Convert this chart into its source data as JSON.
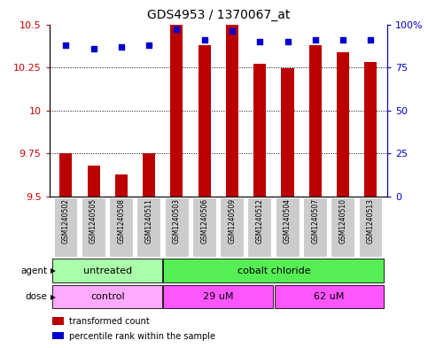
{
  "title": "GDS4953 / 1370067_at",
  "samples": [
    "GSM1240502",
    "GSM1240505",
    "GSM1240508",
    "GSM1240511",
    "GSM1240503",
    "GSM1240506",
    "GSM1240509",
    "GSM1240512",
    "GSM1240504",
    "GSM1240507",
    "GSM1240510",
    "GSM1240513"
  ],
  "transformed_count": [
    9.75,
    9.68,
    9.63,
    9.75,
    10.5,
    10.38,
    10.5,
    10.27,
    10.245,
    10.38,
    10.34,
    10.28
  ],
  "percentile_rank": [
    88,
    86,
    87,
    88,
    97,
    91,
    96,
    90,
    90,
    91,
    91,
    91
  ],
  "ymin": 9.5,
  "ymax": 10.5,
  "yticks_left": [
    9.5,
    9.75,
    10.0,
    10.25,
    10.5
  ],
  "ytick_labels_left": [
    "9.5",
    "9.75",
    "10",
    "10.25",
    "10.5"
  ],
  "yticks_right": [
    0,
    25,
    50,
    75,
    100
  ],
  "ytick_labels_right": [
    "0",
    "25",
    "50",
    "75",
    "100%"
  ],
  "bar_color": "#bb0000",
  "dot_color": "#0000cc",
  "dot_size": 18,
  "bar_width": 0.45,
  "agent_groups": [
    {
      "label": "untreated",
      "start": 0,
      "end": 3,
      "color": "#aaffaa"
    },
    {
      "label": "cobalt chloride",
      "start": 4,
      "end": 11,
      "color": "#55ee55"
    }
  ],
  "dose_groups": [
    {
      "label": "control",
      "start": 0,
      "end": 3,
      "color": "#ffaaff"
    },
    {
      "label": "29 uM",
      "start": 4,
      "end": 7,
      "color": "#ff55ff"
    },
    {
      "label": "62 uM",
      "start": 8,
      "end": 11,
      "color": "#ff55ff"
    }
  ],
  "legend_bar_label": "transformed count",
  "legend_dot_label": "percentile rank within the sample",
  "left_tick_color": "#cc0000",
  "right_tick_color": "#0000cc",
  "xtick_bg": "#cccccc",
  "grid_color": "black",
  "title_fontsize": 10,
  "axis_label_fontsize": 8,
  "xtick_fontsize": 5.5,
  "legend_fontsize": 7,
  "row_label_fontsize": 7.5,
  "group_label_fontsize": 8
}
